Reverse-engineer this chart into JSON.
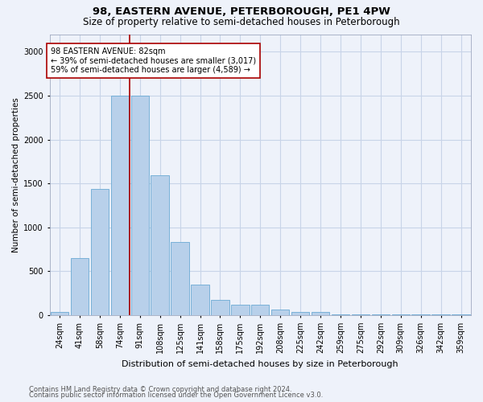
{
  "title": "98, EASTERN AVENUE, PETERBOROUGH, PE1 4PW",
  "subtitle": "Size of property relative to semi-detached houses in Peterborough",
  "xlabel": "Distribution of semi-detached houses by size in Peterborough",
  "ylabel": "Number of semi-detached properties",
  "categories": [
    "24sqm",
    "41sqm",
    "58sqm",
    "74sqm",
    "91sqm",
    "108sqm",
    "125sqm",
    "141sqm",
    "158sqm",
    "175sqm",
    "192sqm",
    "208sqm",
    "225sqm",
    "242sqm",
    "259sqm",
    "275sqm",
    "292sqm",
    "309sqm",
    "326sqm",
    "342sqm",
    "359sqm"
  ],
  "bar_values": [
    40,
    650,
    1440,
    2500,
    2500,
    1590,
    830,
    350,
    175,
    120,
    115,
    65,
    40,
    35,
    10,
    10,
    10,
    10,
    10,
    10,
    10
  ],
  "bar_color": "#b8d0ea",
  "bar_edge_color": "#6aaad4",
  "grid_color": "#c8d4e8",
  "background_color": "#eef2fa",
  "vline_color": "#aa0000",
  "annotation_text": "98 EASTERN AVENUE: 82sqm\n← 39% of semi-detached houses are smaller (3,017)\n59% of semi-detached houses are larger (4,589) →",
  "annotation_box_color": "#ffffff",
  "annotation_box_edge": "#aa0000",
  "ylim": [
    0,
    3200
  ],
  "yticks": [
    0,
    500,
    1000,
    1500,
    2000,
    2500,
    3000
  ],
  "footer_line1": "Contains HM Land Registry data © Crown copyright and database right 2024.",
  "footer_line2": "Contains public sector information licensed under the Open Government Licence v3.0.",
  "title_fontsize": 9.5,
  "subtitle_fontsize": 8.5,
  "xlabel_fontsize": 8,
  "ylabel_fontsize": 7.5,
  "tick_fontsize": 7,
  "annotation_fontsize": 7,
  "footer_fontsize": 6
}
